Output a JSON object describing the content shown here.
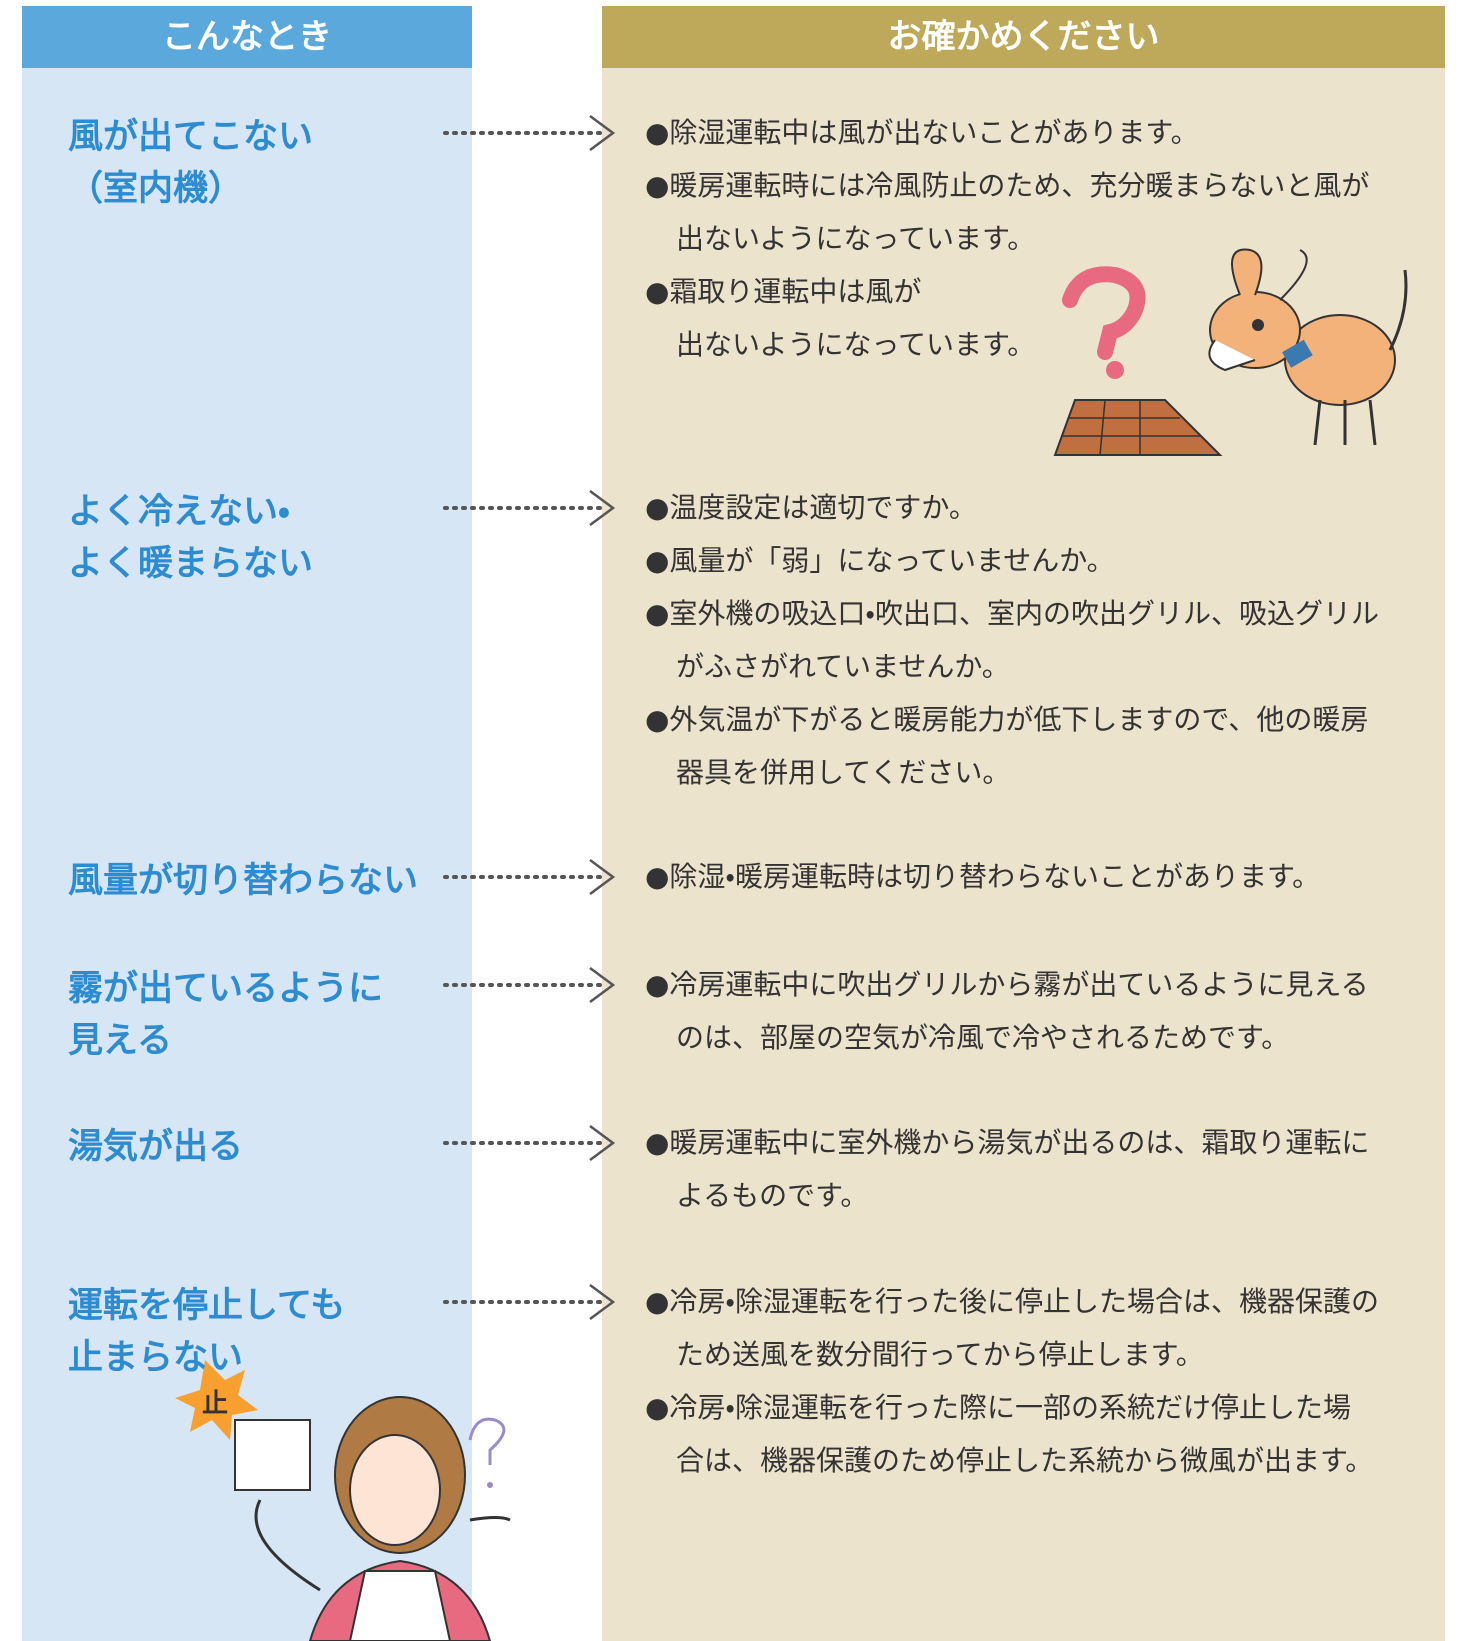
{
  "header": {
    "left": "こんなとき",
    "right": "お確かめください"
  },
  "rows": [
    {
      "symptom": [
        "風が出てこない",
        "（室内機）"
      ],
      "items": [
        [
          "●除湿運転中は風が出ないことがあります。"
        ],
        [
          "●暖房運転時には冷風防止のため、充分暖まらないと風が",
          "出ないようになっています。"
        ],
        [
          "●霜取り運転中は風が",
          "出ないようになっています。"
        ]
      ]
    },
    {
      "symptom": [
        "よく冷えない・",
        "よく暖まらない"
      ],
      "items": [
        [
          "●温度設定は適切ですか。"
        ],
        [
          "●風量が「弱」になっていませんか。"
        ],
        [
          "●室外機の吸込口・吹出口、室内の吹出グリル、吸込グリル",
          "がふさがれていませんか。"
        ],
        [
          "●外気温が下がると暖房能力が低下しますので、他の暖房",
          "器具を併用してください。"
        ]
      ]
    },
    {
      "symptom": [
        "風量が切り替わらない"
      ],
      "items": [
        [
          "●除湿・暖房運転時は切り替わらないことがあります。"
        ]
      ]
    },
    {
      "symptom": [
        "霧が出ているように",
        "見える"
      ],
      "items": [
        [
          "●冷房運転中に吹出グリルから霧が出ているように見える",
          "のは、部屋の空気が冷風で冷やされるためです。"
        ]
      ]
    },
    {
      "symptom": [
        "湯気が出る"
      ],
      "items": [
        [
          "●暖房運転中に室外機から湯気が出るのは、霜取り運転に",
          "よるものです。"
        ]
      ]
    },
    {
      "symptom": [
        "運転を停止しても",
        "止まらない"
      ],
      "items": [
        [
          "●冷房・除湿運転を行った後に停止した場合は、機器保護の",
          "ため送風を数分間行ってから停止します。"
        ],
        [
          "●冷房・除湿運転を行った際に一部の系統だけ停止した場",
          "合は、機器保護のため停止した系統から微風が出ます。"
        ]
      ]
    }
  ],
  "illustration": {
    "sign": "止"
  }
}
